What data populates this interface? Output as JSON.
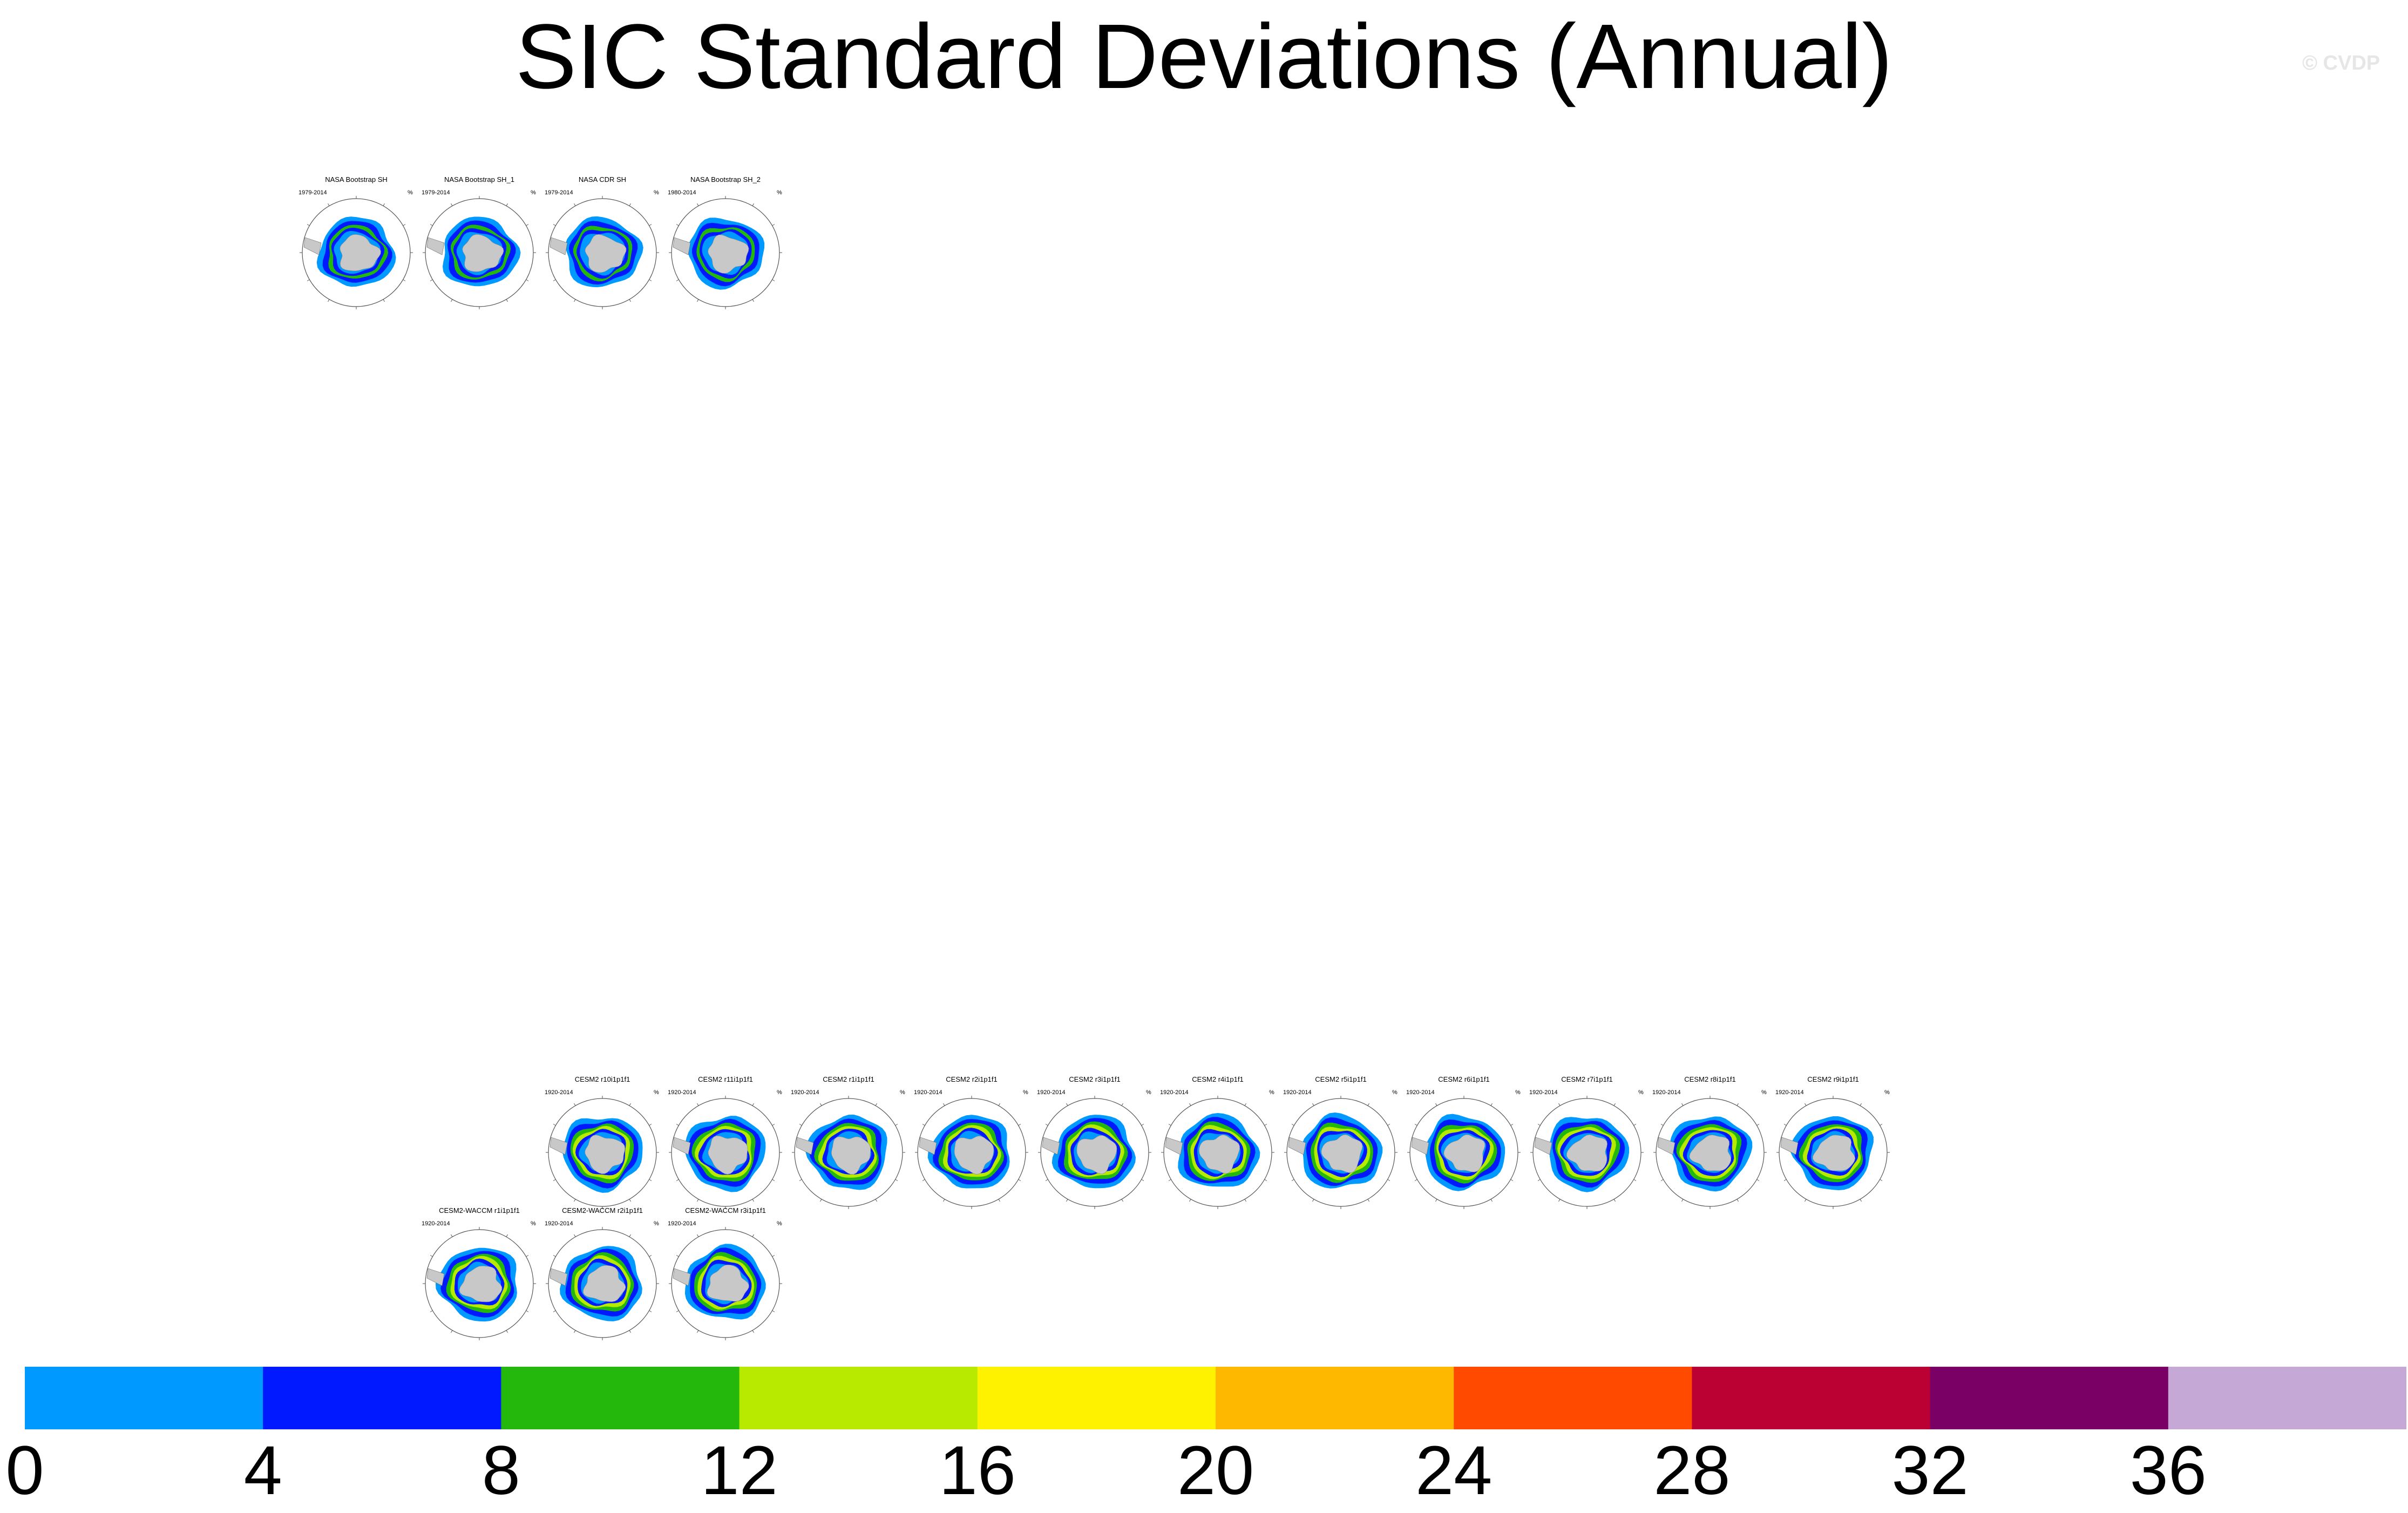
{
  "title": "SIC Standard Deviations (Annual)",
  "watermark": "© CVDP",
  "panels": [
    {
      "title": "NASA Bootstrap SH",
      "years": "1979-2014",
      "unit": "%"
    },
    {
      "title": "NASA Bootstrap SH_1",
      "years": "1979-2014",
      "unit": "%"
    },
    {
      "title": "NASA CDR SH",
      "years": "1979-2014",
      "unit": "%"
    },
    {
      "title": "NASA Bootstrap SH_2",
      "years": "1980-2014",
      "unit": "%"
    },
    {
      "title": "CESM2 r10i1p1f1",
      "years": "1920-2014",
      "unit": "%"
    },
    {
      "title": "CESM2 r11i1p1f1",
      "years": "1920-2014",
      "unit": "%"
    },
    {
      "title": "CESM2 r1i1p1f1",
      "years": "1920-2014",
      "unit": "%"
    },
    {
      "title": "CESM2 r2i1p1f1",
      "years": "1920-2014",
      "unit": "%"
    },
    {
      "title": "CESM2 r3i1p1f1",
      "years": "1920-2014",
      "unit": "%"
    },
    {
      "title": "CESM2 r4i1p1f1",
      "years": "1920-2014",
      "unit": "%"
    },
    {
      "title": "CESM2 r5i1p1f1",
      "years": "1920-2014",
      "unit": "%"
    },
    {
      "title": "CESM2 r6i1p1f1",
      "years": "1920-2014",
      "unit": "%"
    },
    {
      "title": "CESM2 r7i1p1f1",
      "years": "1920-2014",
      "unit": "%"
    },
    {
      "title": "CESM2 r8i1p1f1",
      "years": "1920-2014",
      "unit": "%"
    },
    {
      "title": "CESM2 r9i1p1f1",
      "years": "1920-2014",
      "unit": "%"
    },
    {
      "title": "CESM2-WACCM r1i1p1f1",
      "years": "1920-2014",
      "unit": "%"
    },
    {
      "title": "CESM2-WACCM r2i1p1f1",
      "years": "1920-2014",
      "unit": "%"
    },
    {
      "title": "CESM2-WACCM r3i1p1f1",
      "years": "1920-2014",
      "unit": "%"
    }
  ],
  "chart_data": {
    "type": "heatmap",
    "title": "SIC Standard Deviations (Annual)",
    "projection": "south polar stereographic",
    "colorbar": {
      "ticks": [
        "0",
        "4",
        "8",
        "12",
        "16",
        "20",
        "24",
        "28",
        "32",
        "36"
      ],
      "bins": [
        {
          "from": 0,
          "to": 4,
          "color": "#0099ff"
        },
        {
          "from": 4,
          "to": 8,
          "color": "#0019ff"
        },
        {
          "from": 8,
          "to": 12,
          "color": "#23b80b"
        },
        {
          "from": 12,
          "to": 16,
          "color": "#b8ea00"
        },
        {
          "from": 16,
          "to": 20,
          "color": "#fff200"
        },
        {
          "from": 20,
          "to": 24,
          "color": "#ffb800"
        },
        {
          "from": 24,
          "to": 28,
          "color": "#ff4a00"
        },
        {
          "from": 28,
          "to": 32,
          "color": "#bb0033"
        },
        {
          "from": 32,
          "to": 36,
          "color": "#7a0066"
        },
        {
          "from": 36,
          "to": null,
          "color": "#c5a8d6"
        }
      ]
    },
    "colors": {
      "land": "#c8c8c8",
      "ocean": "#ffffff"
    }
  }
}
